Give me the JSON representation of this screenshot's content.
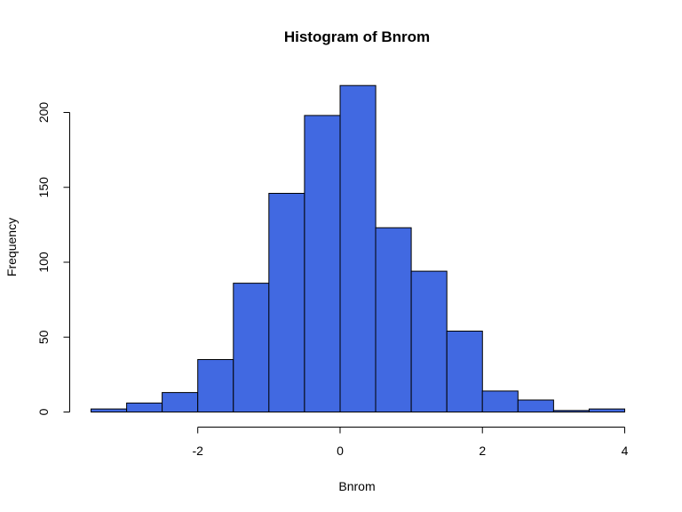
{
  "chart_data": {
    "type": "bar",
    "title": "Histogram of Bnrom",
    "xlabel": "Bnrom",
    "ylabel": "Frequency",
    "bin_edges": [
      -3.5,
      -3.0,
      -2.5,
      -2.0,
      -1.5,
      -1.0,
      -0.5,
      0.0,
      0.5,
      1.0,
      1.5,
      2.0,
      2.5,
      3.0,
      3.5,
      4.0
    ],
    "values": [
      2,
      6,
      13,
      35,
      86,
      146,
      198,
      218,
      123,
      94,
      54,
      14,
      8,
      1,
      2
    ],
    "xlim": [
      -3.5,
      4.0
    ],
    "ylim": [
      0,
      200
    ],
    "x_ticks": [
      -2,
      0,
      2,
      4
    ],
    "x_tick_labels": [
      "-2",
      "0",
      "2",
      "4"
    ],
    "y_ticks": [
      0,
      50,
      100,
      150,
      200
    ],
    "y_tick_labels": [
      "0",
      "50",
      "100",
      "150",
      "200"
    ],
    "bar_color": "#4169E1",
    "grid": false,
    "legend": "none"
  }
}
